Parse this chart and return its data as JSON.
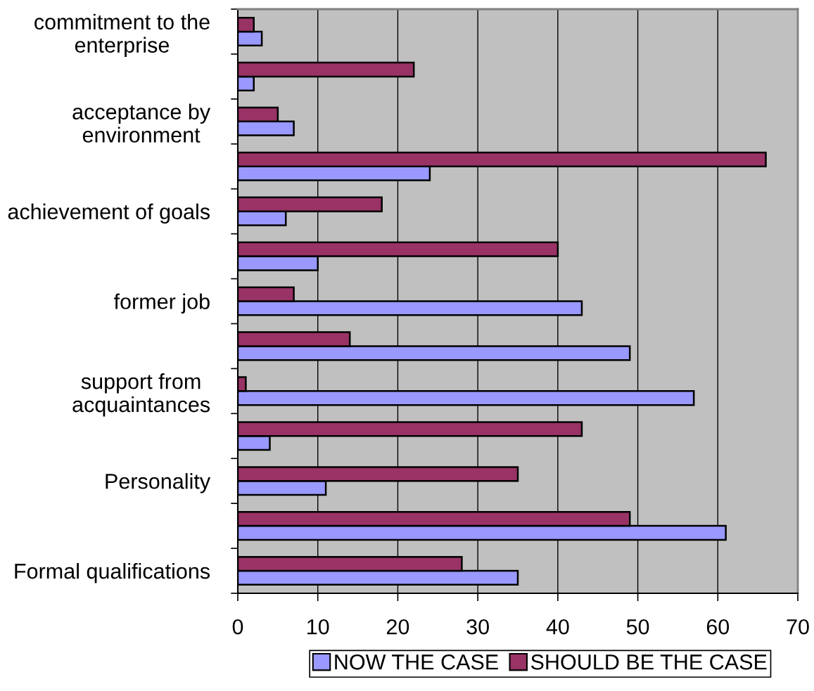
{
  "chart_data": {
    "type": "bar",
    "orientation": "horizontal",
    "categories": [
      "commitment to the\nenterprise",
      null,
      "acceptance by\nenvironment",
      null,
      "achievement of goals",
      null,
      "former job",
      null,
      "support from\nacquaintances",
      null,
      "Personality",
      null,
      "Formal qualifications"
    ],
    "series": [
      {
        "name": "NOW THE CASE",
        "color": "#9999ff",
        "values": [
          3,
          2,
          7,
          24,
          6,
          10,
          43,
          49,
          57,
          4,
          11,
          61,
          35
        ]
      },
      {
        "name": "SHOULD BE THE CASE",
        "color": "#993366",
        "values": [
          2,
          22,
          5,
          66,
          18,
          40,
          7,
          14,
          1,
          43,
          35,
          49,
          28
        ]
      }
    ],
    "xlim": [
      0,
      70
    ],
    "xticks": [
      0,
      10,
      20,
      30,
      40,
      50,
      60,
      70
    ],
    "grid": "x",
    "legend": "bottom"
  }
}
